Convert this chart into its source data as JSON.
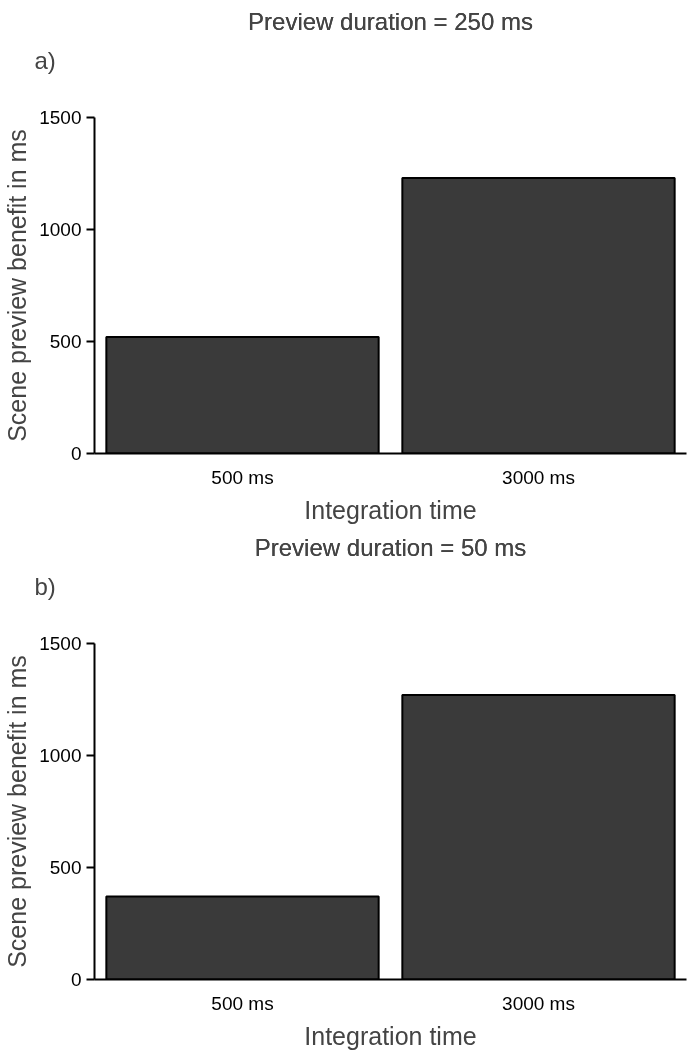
{
  "chart_data": [
    {
      "type": "bar",
      "title": "Preview duration = 250 ms",
      "xlabel": "Integration time",
      "ylabel": "Scene preview benefit in ms",
      "annotations": [
        "a)"
      ],
      "categories": [
        "500 ms",
        "3000 ms"
      ],
      "values": [
        520,
        1230
      ],
      "color": "#3a3a3a",
      "ylim": [
        0,
        1500
      ],
      "yticks": [
        0,
        500,
        1000,
        1500
      ],
      "grid": false
    },
    {
      "type": "bar",
      "title": "Preview duration = 50 ms",
      "xlabel": "Integration time",
      "ylabel": "Scene preview benefit in ms",
      "annotations": [
        "b)"
      ],
      "categories": [
        "500 ms",
        "3000 ms"
      ],
      "values": [
        370,
        1270
      ],
      "color": "#3a3a3a",
      "ylim": [
        0,
        1500
      ],
      "yticks": [
        0,
        500,
        1000,
        1500
      ],
      "grid": false
    }
  ]
}
